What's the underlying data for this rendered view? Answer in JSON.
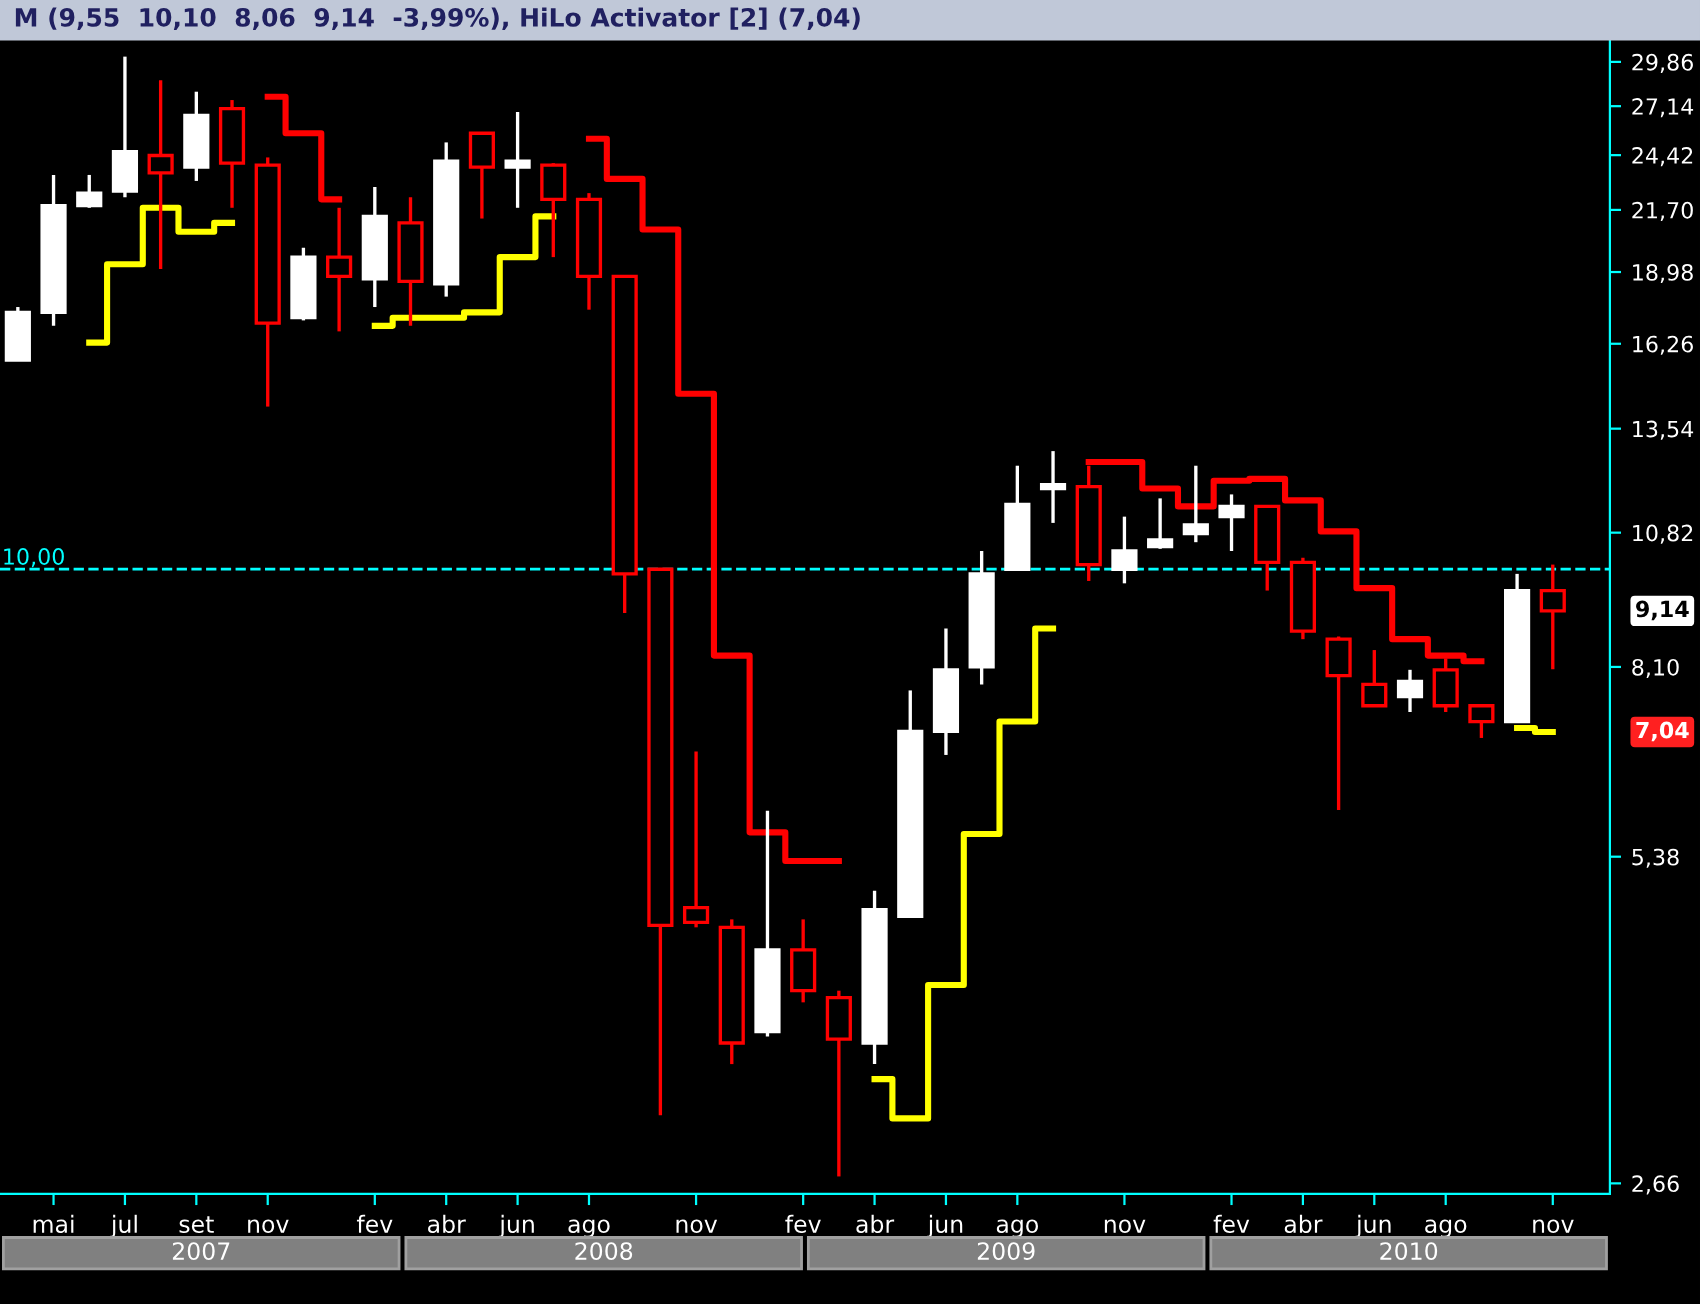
{
  "chart_data": {
    "type": "candlestick",
    "title": "M (9,55  10,10  8,06  9,14  -3,99%), HiLo Activator [2] (7,04)",
    "categories": [
      null,
      "mai",
      null,
      "jul",
      null,
      "set",
      null,
      "nov",
      null,
      null,
      "fev",
      null,
      "abr",
      null,
      "jun",
      null,
      "ago",
      null,
      null,
      "nov",
      null,
      null,
      "fev",
      null,
      "abr",
      null,
      "jun",
      null,
      "ago",
      null,
      null,
      "nov",
      null,
      null,
      "fev",
      null,
      "abr",
      null,
      "jun",
      null,
      "ago",
      null,
      null,
      "nov"
    ],
    "ohlc": [
      [
        15.7,
        17.6,
        15.7,
        17.4
      ],
      [
        17.4,
        23.4,
        16.9,
        21.9
      ],
      [
        21.9,
        23.4,
        21.8,
        22.5
      ],
      [
        22.6,
        30.2,
        22.3,
        24.6
      ],
      [
        24.4,
        28.7,
        19.1,
        23.5
      ],
      [
        23.8,
        28.0,
        23.1,
        26.6
      ],
      [
        27.0,
        27.5,
        21.8,
        24.0
      ],
      [
        23.9,
        24.3,
        14.2,
        17.0
      ],
      [
        17.2,
        20.0,
        17.1,
        19.6
      ],
      [
        19.6,
        21.8,
        16.7,
        18.8
      ],
      [
        18.7,
        22.8,
        17.6,
        21.4
      ],
      [
        21.1,
        22.3,
        16.9,
        18.6
      ],
      [
        18.5,
        25.1,
        18.0,
        24.1
      ],
      [
        25.6,
        25.6,
        21.3,
        23.8
      ],
      [
        23.8,
        26.8,
        21.8,
        24.1
      ],
      [
        23.9,
        24.0,
        19.6,
        22.2
      ],
      [
        22.2,
        22.5,
        17.5,
        18.8
      ],
      [
        18.8,
        18.8,
        9.1,
        9.9
      ],
      [
        10.0,
        10.0,
        3.08,
        4.64
      ],
      [
        4.82,
        6.75,
        4.62,
        4.67
      ],
      [
        4.62,
        4.7,
        3.44,
        3.6
      ],
      [
        3.69,
        5.94,
        3.65,
        4.4
      ],
      [
        4.4,
        4.7,
        3.93,
        4.03
      ],
      [
        3.97,
        4.03,
        2.7,
        3.63
      ],
      [
        3.6,
        5.0,
        3.44,
        4.8
      ],
      [
        4.73,
        7.7,
        4.73,
        7.05
      ],
      [
        7.05,
        8.8,
        6.7,
        8.05
      ],
      [
        8.1,
        10.4,
        7.8,
        9.9
      ],
      [
        10.0,
        12.5,
        10.0,
        11.5
      ],
      [
        11.9,
        12.9,
        11.05,
        12.0
      ],
      [
        11.95,
        12.5,
        9.75,
        10.1
      ],
      [
        10.0,
        11.2,
        9.7,
        10.4
      ],
      [
        10.5,
        11.65,
        10.45,
        10.65
      ],
      [
        10.8,
        12.5,
        10.6,
        11.0
      ],
      [
        11.2,
        11.75,
        10.4,
        11.45
      ],
      [
        11.45,
        11.45,
        9.55,
        10.15
      ],
      [
        10.15,
        10.25,
        8.6,
        8.75
      ],
      [
        8.6,
        8.65,
        5.95,
        7.95
      ],
      [
        7.8,
        8.4,
        7.45,
        7.45
      ],
      [
        7.6,
        8.05,
        7.35,
        7.85
      ],
      [
        8.05,
        8.25,
        7.35,
        7.45
      ],
      [
        7.45,
        7.45,
        6.95,
        7.2
      ],
      [
        7.2,
        9.9,
        7.2,
        9.55
      ],
      [
        9.55,
        10.1,
        8.06,
        9.14
      ]
    ],
    "series": [
      {
        "type": "step",
        "color": "#ff0000",
        "values": [
          null,
          null,
          null,
          null,
          null,
          null,
          null,
          27.7,
          25.6,
          22.2,
          null,
          null,
          null,
          null,
          null,
          null,
          25.3,
          23.2,
          20.8,
          14.6,
          8.3,
          5.67,
          5.33,
          5.33,
          null,
          null,
          null,
          null,
          null,
          null,
          12.6,
          12.6,
          11.9,
          11.45,
          12.1,
          12.15,
          11.6,
          10.85,
          9.6,
          8.6,
          8.3,
          8.2,
          null,
          null
        ]
      },
      {
        "type": "step",
        "color": "#ffff00",
        "values": [
          null,
          null,
          16.3,
          19.3,
          21.8,
          20.7,
          21.1,
          null,
          null,
          null,
          16.9,
          17.2,
          17.2,
          17.4,
          19.6,
          21.4,
          null,
          null,
          null,
          null,
          null,
          null,
          null,
          null,
          3.33,
          3.06,
          4.08,
          5.65,
          7.2,
          8.8,
          null,
          null,
          null,
          null,
          null,
          null,
          null,
          null,
          null,
          null,
          null,
          null,
          7.1,
          7.04
        ]
      }
    ],
    "log": true,
    "ylim": [
      2.6,
      31.3
    ],
    "yticks": [
      {
        "value": 2.66,
        "label": "2,66"
      },
      {
        "value": 5.38,
        "label": "5,38"
      },
      {
        "value": 8.1,
        "label": "8,10"
      },
      {
        "value": 10.82,
        "label": "10,82"
      },
      {
        "value": 13.54,
        "label": "13,54"
      },
      {
        "value": 16.26,
        "label": "16,26"
      },
      {
        "value": 18.98,
        "label": "18,98"
      },
      {
        "value": 21.7,
        "label": "21,70"
      },
      {
        "value": 24.42,
        "label": "24,42"
      },
      {
        "value": 27.14,
        "label": "27,14"
      },
      {
        "value": 29.86,
        "label": "29,86"
      }
    ],
    "ref_lines": [
      {
        "axis": "y",
        "value": 10,
        "label": "10,00",
        "color": "#00ffff",
        "line_style": "dashed"
      }
    ],
    "annotations": [
      "9,14",
      "7,04",
      "2007",
      "2008",
      "2009",
      "2010"
    ],
    "grid": false,
    "legend": false
  }
}
